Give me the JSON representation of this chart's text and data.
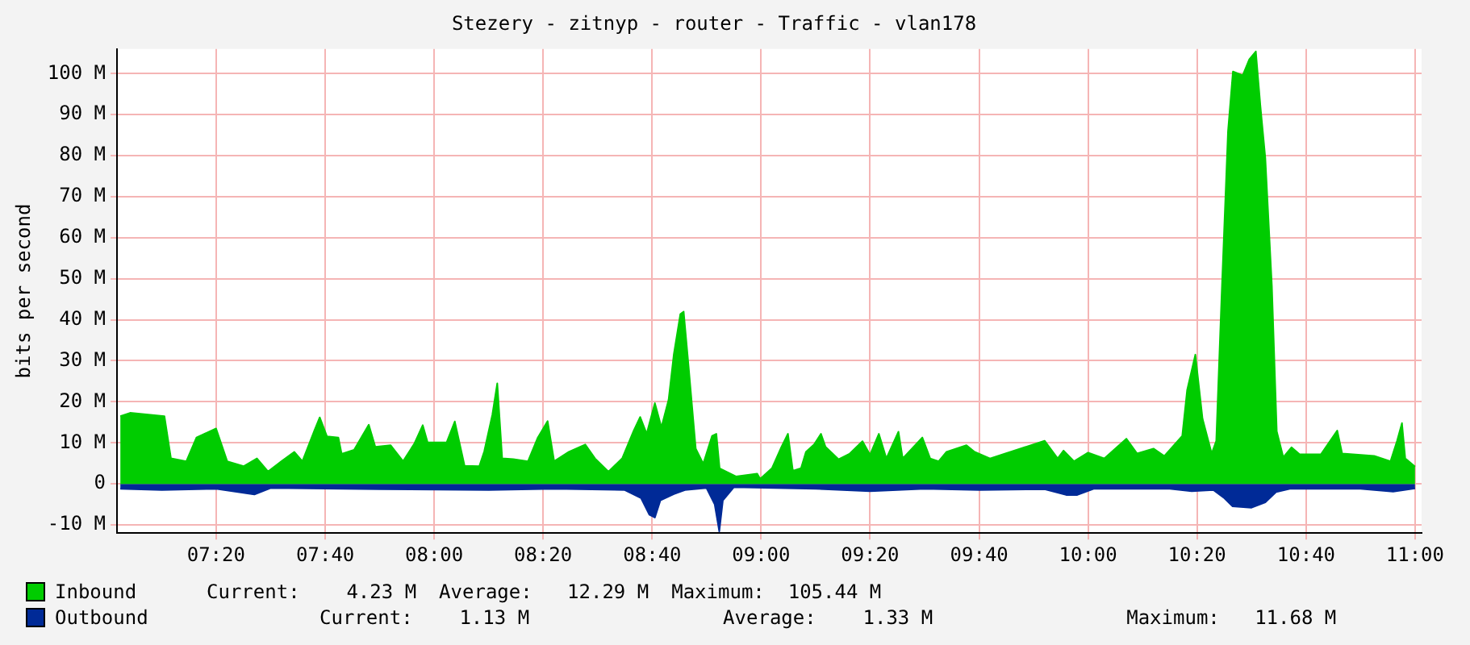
{
  "chart_data": {
    "type": "area",
    "title": "Stezery - zitnyp - router - Traffic - vlan178",
    "ylabel": "bits per second",
    "xlim": [
      7.03,
      11.02
    ],
    "ylim": [
      -12,
      106
    ],
    "xticks": [
      {
        "value": 7.333,
        "label": "07:20"
      },
      {
        "value": 7.667,
        "label": "07:40"
      },
      {
        "value": 8,
        "label": "08:00"
      },
      {
        "value": 8.333,
        "label": "08:20"
      },
      {
        "value": 8.667,
        "label": "08:40"
      },
      {
        "value": 9,
        "label": "09:00"
      },
      {
        "value": 9.333,
        "label": "09:20"
      },
      {
        "value": 9.667,
        "label": "09:40"
      },
      {
        "value": 10,
        "label": "10:00"
      },
      {
        "value": 10.333,
        "label": "10:20"
      },
      {
        "value": 10.667,
        "label": "10:40"
      },
      {
        "value": 11,
        "label": "11:00"
      }
    ],
    "yticks": [
      {
        "value": -10,
        "label": "-10 M"
      },
      0,
      {
        "value": 10,
        "label": "10 M"
      },
      {
        "value": 20,
        "label": "20 M"
      },
      {
        "value": 30,
        "label": "30 M"
      },
      {
        "value": 40,
        "label": "40 M"
      },
      {
        "value": 50,
        "label": "50 M"
      },
      {
        "value": 60,
        "label": "60 M"
      },
      {
        "value": 70,
        "label": "70 M"
      },
      {
        "value": 80,
        "label": "80 M"
      },
      {
        "value": 90,
        "label": "90 M"
      },
      {
        "value": 100,
        "label": "100 M"
      }
    ],
    "grid": true,
    "legend": "bottom left",
    "series": [
      {
        "name": "Inbound",
        "color": "#00cc00",
        "x": [
          7.04,
          7.07,
          7.175,
          7.195,
          7.242,
          7.273,
          7.333,
          7.367,
          7.417,
          7.458,
          7.492,
          7.533,
          7.572,
          7.597,
          7.633,
          7.65,
          7.672,
          7.707,
          7.717,
          7.755,
          7.8,
          7.82,
          7.867,
          7.905,
          7.94,
          7.965,
          7.98,
          8.038,
          8.063,
          8.093,
          8.138,
          8.153,
          8.178,
          8.193,
          8.208,
          8.242,
          8.287,
          8.317,
          8.347,
          8.367,
          8.412,
          8.462,
          8.492,
          8.533,
          8.575,
          8.61,
          8.63,
          8.65,
          8.675,
          8.695,
          8.717,
          8.733,
          8.753,
          8.763,
          8.778,
          8.8,
          8.823,
          8.85,
          8.863,
          8.873,
          8.923,
          8.988,
          8.997,
          9.033,
          9.062,
          9.082,
          9.097,
          9.122,
          9.137,
          9.162,
          9.183,
          9.197,
          9.237,
          9.27,
          9.31,
          9.333,
          9.36,
          9.383,
          9.42,
          9.433,
          9.493,
          9.517,
          9.543,
          9.567,
          9.628,
          9.653,
          9.7,
          9.867,
          9.907,
          9.925,
          9.957,
          10,
          10.05,
          10.117,
          10.15,
          10.2,
          10.233,
          10.288,
          10.303,
          10.328,
          10.35,
          10.378,
          10.392,
          10.408,
          10.428,
          10.443,
          10.473,
          10.493,
          10.513,
          10.527,
          10.542,
          10.562,
          10.577,
          10.597,
          10.622,
          10.647,
          10.712,
          10.762,
          10.777,
          10.875,
          10.925,
          10.945,
          10.96,
          10.97,
          11
        ],
        "values": [
          16.5,
          17.3,
          16.5,
          6.2,
          5.5,
          11.3,
          13.5,
          5.5,
          4.3,
          6.2,
          3,
          5.5,
          7.8,
          5.5,
          12.9,
          16.2,
          11.6,
          11.3,
          7.3,
          8.3,
          14.4,
          9,
          9.4,
          5.5,
          9.9,
          14.3,
          10.1,
          10.1,
          15.2,
          4.4,
          4.3,
          7.9,
          16.9,
          24.5,
          6.2,
          6,
          5.5,
          11.3,
          15.3,
          5.5,
          7.8,
          9.6,
          6.2,
          3,
          6.2,
          12.9,
          16.3,
          12.2,
          19.7,
          13.8,
          20.5,
          31.6,
          41.4,
          42,
          28.7,
          8.6,
          4.9,
          11.7,
          12.2,
          3.8,
          1.8,
          2.5,
          1.2,
          3.8,
          9,
          12.2,
          3.2,
          3.8,
          7.8,
          9.6,
          12.2,
          9,
          6,
          7.3,
          10.4,
          7.1,
          12.2,
          6.2,
          12.7,
          6.2,
          11.3,
          6.2,
          5.5,
          7.8,
          9.4,
          7.8,
          6.2,
          10.5,
          6.2,
          8.1,
          5.5,
          7.6,
          6.2,
          11,
          7.4,
          8.6,
          6.8,
          11.7,
          22.9,
          31.5,
          15.9,
          7.4,
          10.5,
          45.1,
          86,
          100.5,
          99.6,
          103.5,
          105.4,
          92.1,
          79.4,
          48.3,
          12.8,
          6.5,
          8.9,
          7.2,
          7.2,
          13,
          7.4,
          6.8,
          5.5,
          10.5,
          14.8,
          6.2,
          4.2
        ]
      },
      {
        "name": "Outbound",
        "color": "#002a97",
        "x": [
          7.04,
          7.167,
          7.333,
          7.45,
          7.5,
          7.833,
          8.167,
          8.367,
          8.583,
          8.633,
          8.658,
          8.675,
          8.692,
          8.733,
          8.767,
          8.833,
          8.858,
          8.872,
          8.883,
          8.917,
          9.167,
          9.333,
          9.5,
          9.667,
          9.867,
          9.933,
          9.967,
          10.017,
          10.25,
          10.317,
          10.383,
          10.417,
          10.442,
          10.5,
          10.542,
          10.575,
          10.617,
          10.833,
          10.933,
          11
        ],
        "values": [
          -1.2,
          -1.5,
          -1.2,
          -2.6,
          -1,
          -1.3,
          -1.5,
          -1.2,
          -1.5,
          -3.5,
          -7.5,
          -8.2,
          -4,
          -2.5,
          -1.5,
          -1,
          -5,
          -11.6,
          -4,
          -0.8,
          -1.2,
          -1.8,
          -1.2,
          -1.5,
          -1.3,
          -2.7,
          -2.7,
          -1.2,
          -1.2,
          -1.8,
          -1.5,
          -3.5,
          -5.5,
          -5.8,
          -4.5,
          -2,
          -1.2,
          -1.2,
          -1.9,
          -1.1
        ]
      }
    ],
    "annotations": [
      "Current:    4.23 M",
      "Average:   12.29 M",
      "Maximum:  105.44 M",
      "Current:    1.13 M",
      "Average:    1.33 M",
      "Maximum:   11.68 M"
    ]
  }
}
